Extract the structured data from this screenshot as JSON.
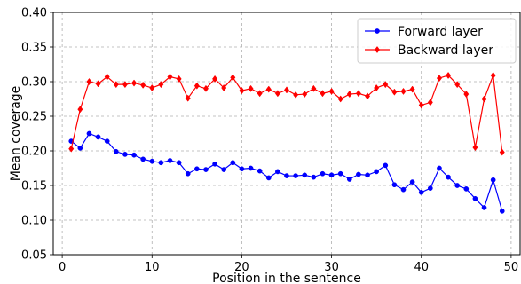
{
  "chart_data": {
    "type": "line",
    "xlabel": "Position in the sentence",
    "ylabel": "Mean coverage",
    "xlim": [
      -1,
      51
    ],
    "ylim": [
      0.05,
      0.4
    ],
    "xticks": [
      0,
      10,
      20,
      30,
      40,
      50
    ],
    "xtick_labels": [
      "0",
      "10",
      "20",
      "30",
      "40",
      "50"
    ],
    "yticks": [
      0.05,
      0.1,
      0.15,
      0.2,
      0.25,
      0.3,
      0.35,
      0.4
    ],
    "ytick_labels": [
      "0.05",
      "0.10",
      "0.15",
      "0.20",
      "0.25",
      "0.30",
      "0.35",
      "0.40"
    ],
    "grid": true,
    "legend_position": "top-right",
    "x": [
      1,
      2,
      3,
      4,
      5,
      6,
      7,
      8,
      9,
      10,
      11,
      12,
      13,
      14,
      15,
      16,
      17,
      18,
      19,
      20,
      21,
      22,
      23,
      24,
      25,
      26,
      27,
      28,
      29,
      30,
      31,
      32,
      33,
      34,
      35,
      36,
      37,
      38,
      39,
      40,
      41,
      42,
      43,
      44,
      45,
      46,
      47,
      48,
      49
    ],
    "series": [
      {
        "name": "Forward layer",
        "color": "#0000ff",
        "marker": "circle",
        "values": [
          0.214,
          0.204,
          0.225,
          0.22,
          0.214,
          0.199,
          0.195,
          0.194,
          0.188,
          0.185,
          0.183,
          0.186,
          0.183,
          0.167,
          0.174,
          0.173,
          0.181,
          0.173,
          0.183,
          0.174,
          0.175,
          0.171,
          0.161,
          0.17,
          0.164,
          0.164,
          0.165,
          0.162,
          0.167,
          0.165,
          0.167,
          0.159,
          0.166,
          0.165,
          0.17,
          0.179,
          0.151,
          0.144,
          0.155,
          0.14,
          0.146,
          0.175,
          0.162,
          0.15,
          0.145,
          0.131,
          0.118,
          0.158,
          0.113
        ]
      },
      {
        "name": "Backward layer",
        "color": "#ff0000",
        "marker": "diamond",
        "values": [
          0.203,
          0.26,
          0.3,
          0.297,
          0.307,
          0.296,
          0.296,
          0.298,
          0.295,
          0.291,
          0.296,
          0.307,
          0.304,
          0.276,
          0.294,
          0.29,
          0.304,
          0.291,
          0.306,
          0.287,
          0.29,
          0.283,
          0.289,
          0.283,
          0.288,
          0.281,
          0.282,
          0.29,
          0.283,
          0.286,
          0.275,
          0.282,
          0.283,
          0.279,
          0.291,
          0.296,
          0.285,
          0.286,
          0.289,
          0.266,
          0.27,
          0.305,
          0.309,
          0.296,
          0.282,
          0.205,
          0.275,
          0.309,
          0.198
        ]
      }
    ]
  }
}
